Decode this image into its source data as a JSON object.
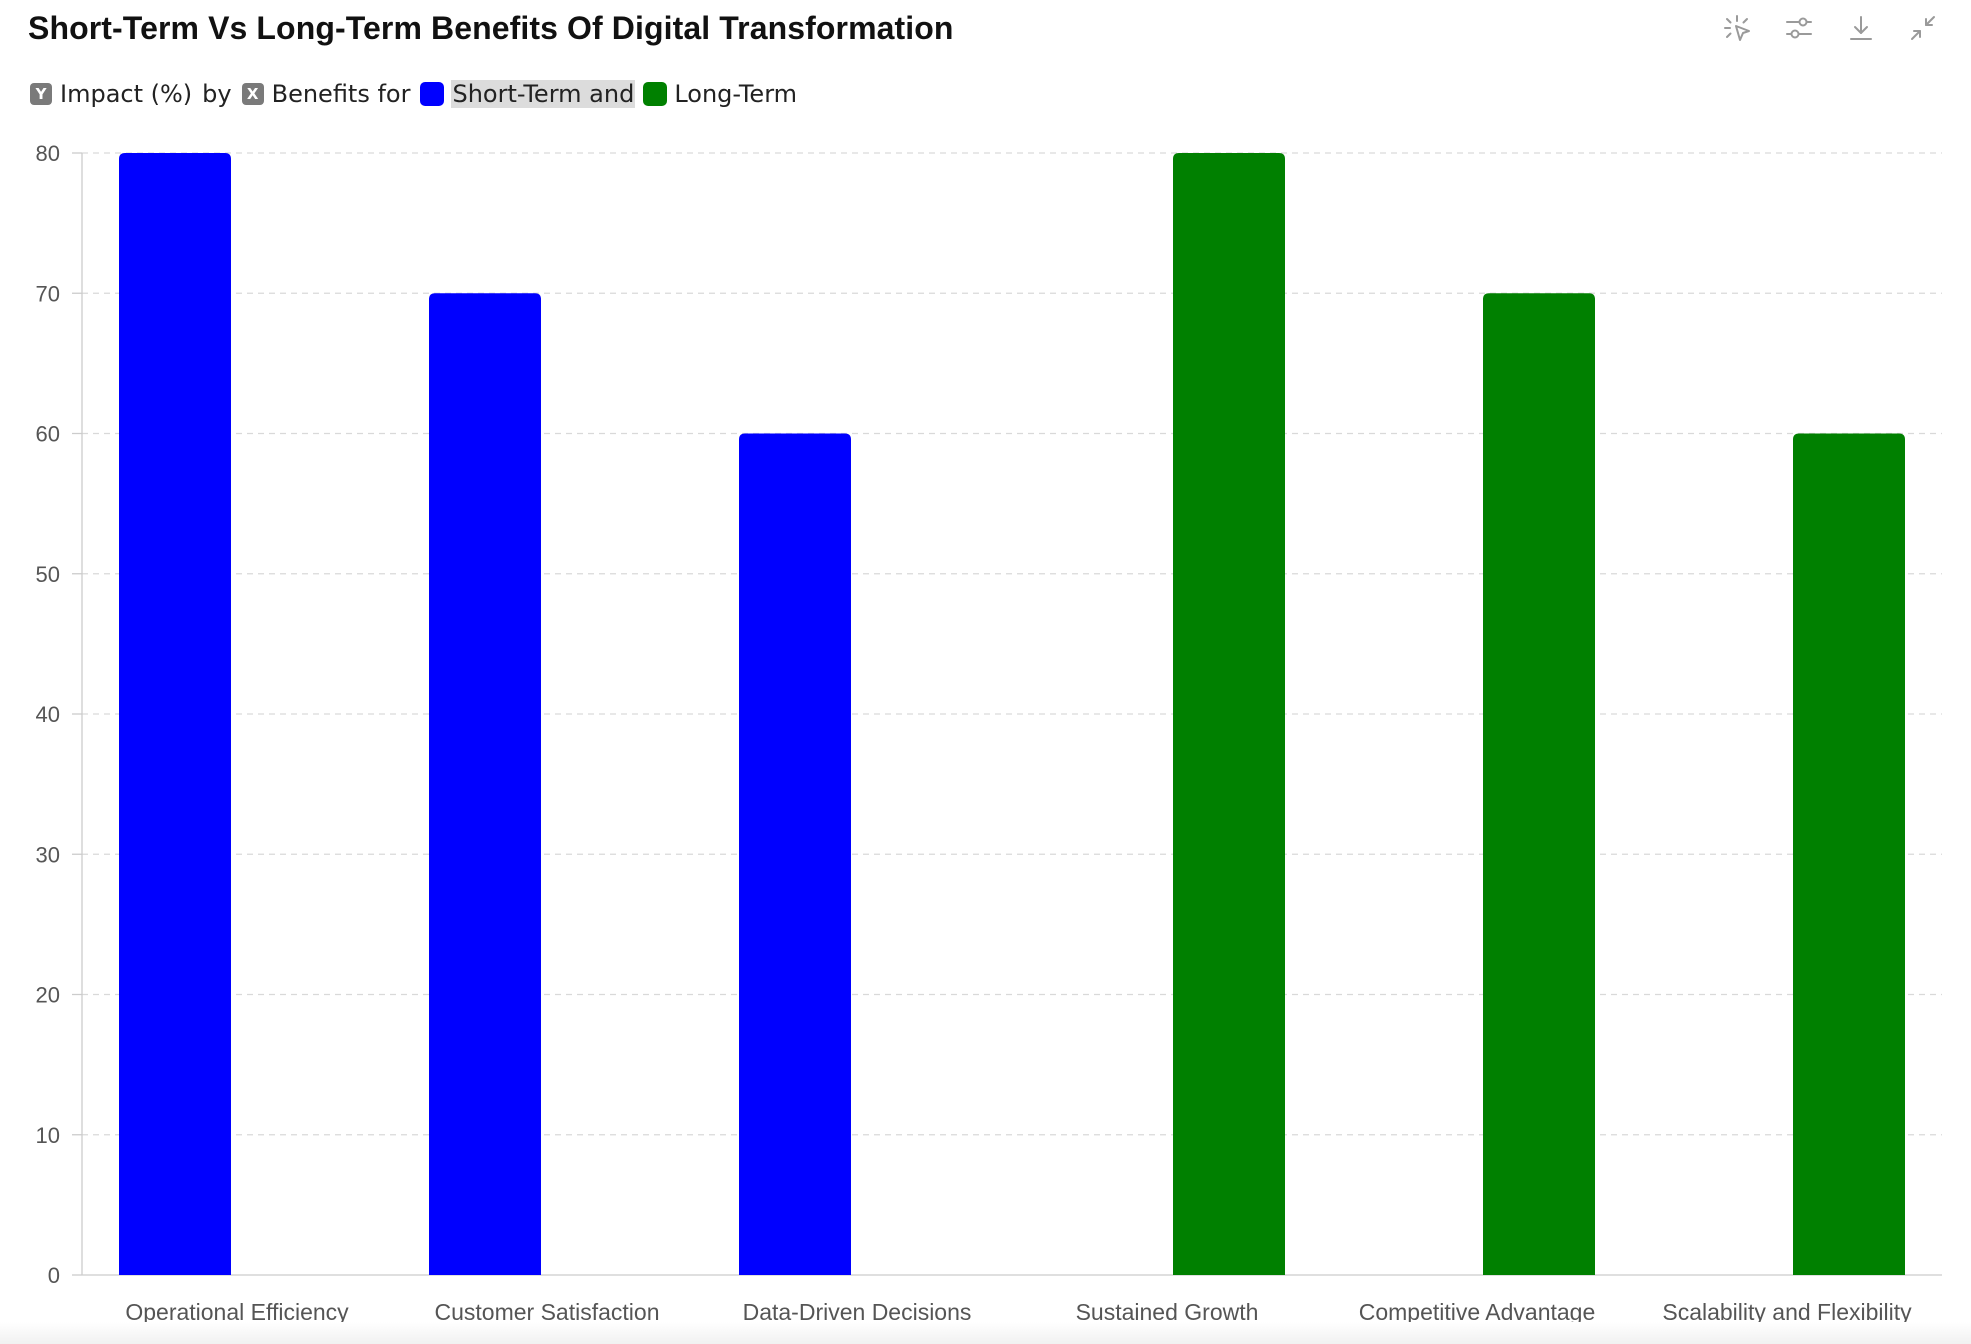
{
  "title": "Short-Term Vs Long-Term Benefits Of Digital Transformation",
  "toolbar": {
    "icons": [
      "pointer-select-icon",
      "sliders-icon",
      "download-icon",
      "collapse-icon"
    ]
  },
  "legend": {
    "y_badge": "Y",
    "y_label": "Impact (%)",
    "by_text": "by",
    "x_badge": "X",
    "x_label": "Benefits for",
    "series1": "Short-Term and",
    "series2": "Long-Term"
  },
  "chart_data": {
    "type": "bar",
    "title": "Short-Term Vs Long-Term Benefits Of Digital Transformation",
    "ylabel": "Impact (%)",
    "xlabel": "Benefits",
    "ylim": [
      0,
      80
    ],
    "yticks": [
      0,
      10,
      20,
      30,
      40,
      50,
      60,
      70,
      80
    ],
    "grid": "horizontal dashed",
    "legend_placement": "top-left",
    "categories": [
      "Operational Efficiency",
      "Customer Satisfaction",
      "Data-Driven Decisions",
      "Sustained Growth",
      "Competitive Advantage",
      "Scalability and Flexibility"
    ],
    "series": [
      {
        "name": "Short-Term",
        "color": "#0000ff",
        "values": [
          80,
          70,
          60,
          null,
          null,
          null
        ]
      },
      {
        "name": "Long-Term",
        "color": "#008000",
        "values": [
          null,
          null,
          null,
          80,
          70,
          60
        ]
      }
    ]
  }
}
